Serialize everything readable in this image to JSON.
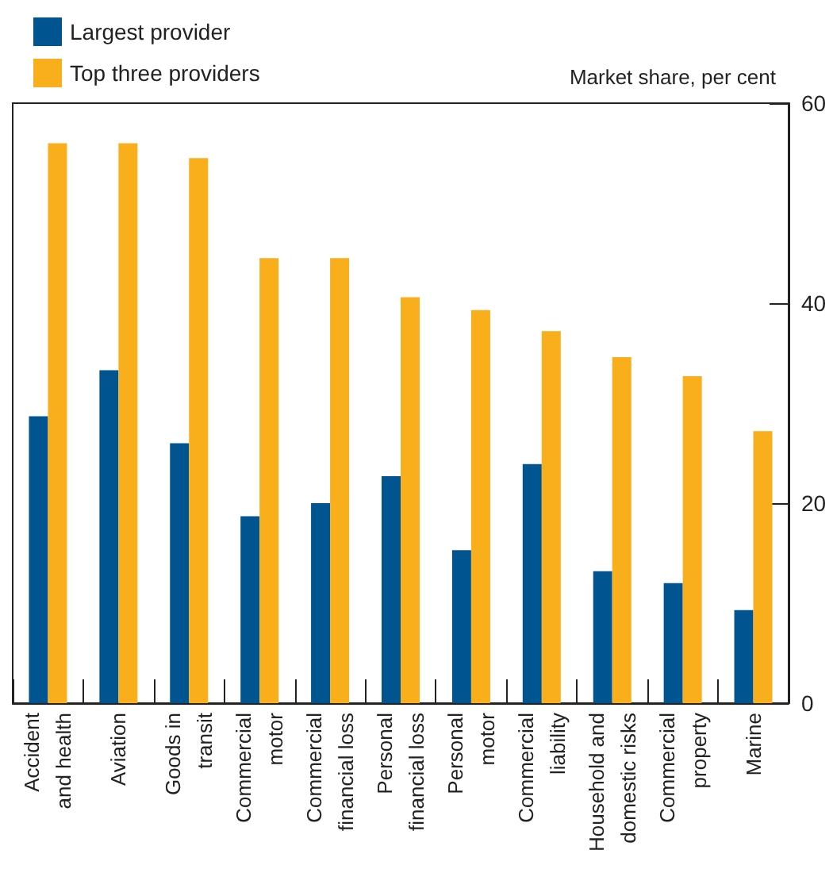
{
  "chart_data": {
    "type": "bar",
    "ylabel": "Market share, per cent",
    "categories": [
      "Accident\nand health",
      "Aviation",
      "Goods in\ntransit",
      "Commercial\nmotor",
      "Commercial\nfinancial loss",
      "Personal\nfinancial loss",
      "Personal\nmotor",
      "Commercial\nliability",
      "Household and\ndomestic risks",
      "Commercial\nproperty",
      "Marine"
    ],
    "series": [
      {
        "name": "Largest provider",
        "color": "#00548f",
        "values": [
          28.7,
          33.3,
          26.0,
          18.7,
          20.0,
          22.7,
          15.3,
          23.9,
          13.2,
          12.0,
          9.3
        ]
      },
      {
        "name": "Top three providers",
        "color": "#f9ae1c",
        "values": [
          56.0,
          56.0,
          54.5,
          44.5,
          44.5,
          40.6,
          39.3,
          37.2,
          34.6,
          32.7,
          27.2
        ]
      }
    ],
    "ylim": [
      0,
      60
    ],
    "yticks": [
      0,
      20,
      40,
      60
    ],
    "grid": false,
    "legend": "top left"
  }
}
